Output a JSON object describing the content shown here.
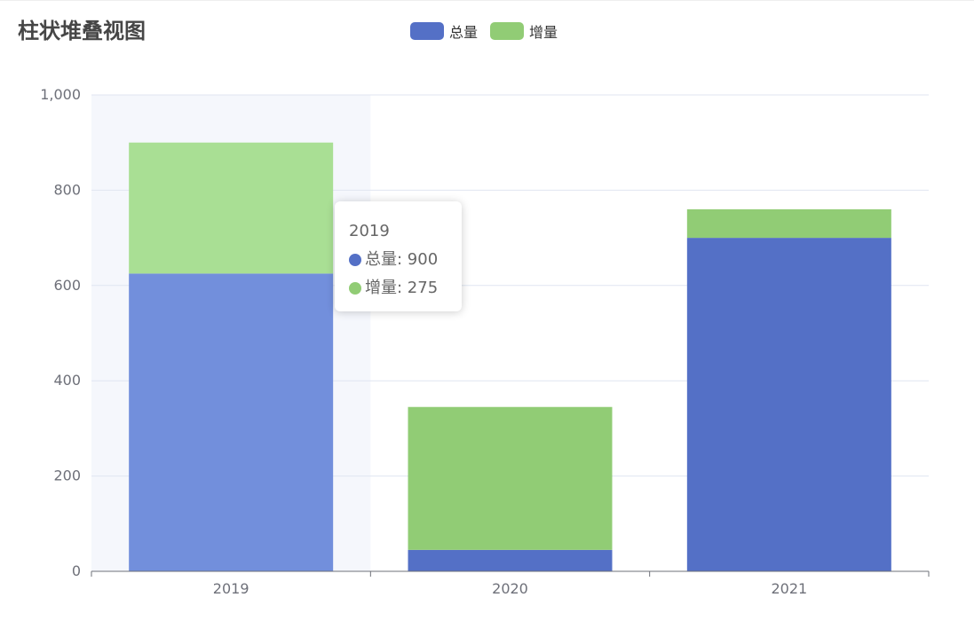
{
  "chart_data": {
    "type": "bar",
    "stacked": true,
    "title": "柱状堆叠视图",
    "categories": [
      "2019",
      "2020",
      "2021"
    ],
    "series": [
      {
        "name": "总量",
        "values": [
          625,
          45,
          700
        ],
        "color": "#5470c6"
      },
      {
        "name": "增量",
        "values": [
          275,
          300,
          60
        ],
        "color": "#91cc75"
      }
    ],
    "highlight_color_bottom": "#728fdc",
    "highlight_color_top": "#a9df94",
    "highlighted_category_index": 0,
    "ylim": [
      0,
      1000
    ],
    "yticks": [
      "0",
      "200",
      "400",
      "600",
      "800",
      "1,000"
    ],
    "ytick_values": [
      0,
      200,
      400,
      600,
      800,
      1000
    ],
    "grid": true,
    "legend_position": "top-center"
  },
  "tooltip": {
    "title": "2019",
    "rows": [
      {
        "label": "总量: 900",
        "color": "#5470c6"
      },
      {
        "label": "增量: 275",
        "color": "#91cc75"
      }
    ]
  }
}
